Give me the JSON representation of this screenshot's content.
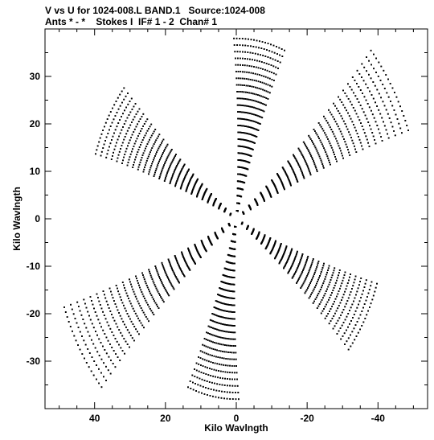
{
  "title_line1": "V vs U for 1024-008.L BAND.1   Source:1024-008",
  "title_line2": "Ants * - *    Stokes I  IF# 1 - 2  Chan# 1",
  "chart_data": {
    "type": "scatter",
    "title": "V vs U for 1024-008.L BAND.1   Source:1024-008",
    "subtitle": "Ants * - *    Stokes I  IF# 1 - 2  Chan# 1",
    "xlabel": "Kilo Wavlngth",
    "ylabel": "Kilo Wavlngth",
    "xlim": [
      54,
      -54
    ],
    "ylim": [
      -40,
      40
    ],
    "x_ticks": [
      40,
      20,
      0,
      -20,
      -40
    ],
    "x_tick_labels": [
      "40",
      "20",
      "0",
      "-20",
      "-40"
    ],
    "y_ticks": [
      30,
      20,
      10,
      0,
      -10,
      -20,
      -30
    ],
    "y_tick_labels": [
      "30",
      "20",
      "10",
      "0",
      "-10",
      "-20",
      "-30"
    ],
    "grid": false,
    "pattern": "six-armed snapshot uv-coverage star (conjugate-symmetric)",
    "arm_directions_deg": [
      100,
      148,
      210,
      280,
      328,
      30
    ],
    "arm_lengths": [
      38,
      52,
      42,
      38,
      52,
      42
    ],
    "marker_color": "#000000"
  }
}
